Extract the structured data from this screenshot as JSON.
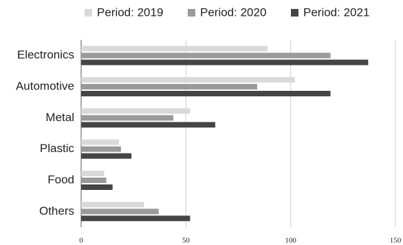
{
  "chart_data": {
    "type": "bar",
    "orientation": "horizontal",
    "categories": [
      "Electronics",
      "Automotive",
      "Metal",
      "Plastic",
      "Food",
      "Others"
    ],
    "series": [
      {
        "name": "Period: 2019",
        "color": "#d9d9d9",
        "values": [
          89,
          102,
          52,
          18,
          11,
          30
        ]
      },
      {
        "name": "Period: 2020",
        "color": "#9a9a9a",
        "values": [
          119,
          84,
          44,
          19,
          12,
          37
        ]
      },
      {
        "name": "Period: 2021",
        "color": "#454545",
        "values": [
          137,
          119,
          64,
          24,
          15,
          52
        ]
      }
    ],
    "xlim": [
      0,
      150
    ],
    "xticks": [
      0,
      50,
      100,
      150
    ],
    "grid": true,
    "legend": "top"
  }
}
